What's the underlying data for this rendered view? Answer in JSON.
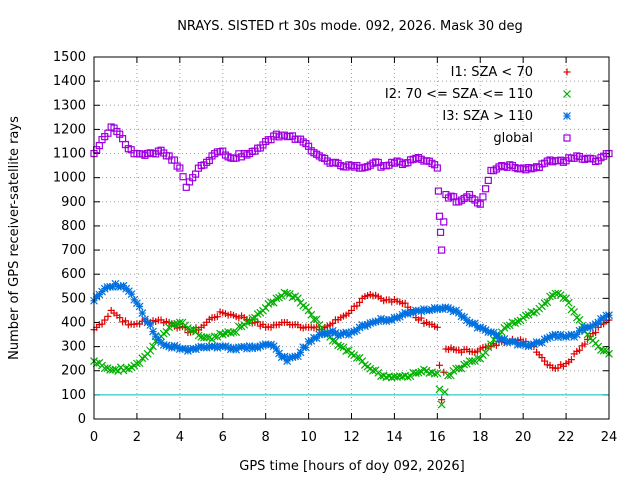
{
  "chart_data": {
    "type": "scatter",
    "title": "NRAYS. SISTED rt 30s mode. 092, 2026. Mask 30 deg",
    "xlabel": "GPS time [hours of doy 092, 2026]",
    "ylabel": "Number of GPS receiver-satellite rays",
    "xlim": [
      0,
      24
    ],
    "ylim": [
      0,
      1500
    ],
    "xticks": [
      "0",
      "2",
      "4",
      "6",
      "8",
      "10",
      "12",
      "14",
      "16",
      "18",
      "20",
      "22",
      "24"
    ],
    "yticks": [
      "0",
      "100",
      "200",
      "300",
      "400",
      "500",
      "600",
      "700",
      "800",
      "900",
      "1000",
      "1100",
      "1200",
      "1300",
      "1400",
      "1500"
    ],
    "grid": true,
    "legend_position": "top-right",
    "threshold_line": {
      "y": 100,
      "color": "#00c0c0"
    },
    "series": [
      {
        "name": "I1: SZA < 70",
        "symbol": "plus",
        "color": "#e00000",
        "points": [
          [
            0,
            370
          ],
          [
            0.5,
            410
          ],
          [
            0.8,
            450
          ],
          [
            1.2,
            420
          ],
          [
            1.6,
            390
          ],
          [
            2,
            395
          ],
          [
            2.5,
            405
          ],
          [
            3,
            410
          ],
          [
            3.5,
            400
          ],
          [
            4,
            380
          ],
          [
            4.5,
            360
          ],
          [
            5,
            380
          ],
          [
            5.5,
            420
          ],
          [
            6,
            440
          ],
          [
            6.5,
            430
          ],
          [
            7,
            420
          ],
          [
            7.5,
            400
          ],
          [
            8,
            380
          ],
          [
            8.5,
            390
          ],
          [
            9,
            400
          ],
          [
            9.5,
            390
          ],
          [
            10,
            380
          ],
          [
            10.5,
            370
          ],
          [
            11,
            390
          ],
          [
            11.5,
            420
          ],
          [
            12,
            450
          ],
          [
            12.5,
            500
          ],
          [
            13,
            510
          ],
          [
            13.5,
            490
          ],
          [
            14,
            495
          ],
          [
            14.5,
            480
          ],
          [
            15,
            420
          ],
          [
            15.5,
            400
          ],
          [
            16,
            380
          ],
          [
            16.2,
            80
          ],
          [
            16.4,
            290
          ],
          [
            17,
            285
          ],
          [
            17.5,
            280
          ],
          [
            18,
            290
          ],
          [
            18.5,
            300
          ],
          [
            19,
            320
          ],
          [
            19.5,
            330
          ],
          [
            20,
            320
          ],
          [
            20.5,
            300
          ],
          [
            21,
            240
          ],
          [
            21.5,
            210
          ],
          [
            22,
            230
          ],
          [
            22.5,
            280
          ],
          [
            23,
            330
          ],
          [
            23.5,
            380
          ],
          [
            24,
            410
          ]
        ]
      },
      {
        "name": "I2: 70 <= SZA <= 110",
        "symbol": "cross",
        "color": "#00b000",
        "points": [
          [
            0,
            240
          ],
          [
            0.5,
            210
          ],
          [
            1,
            205
          ],
          [
            1.5,
            210
          ],
          [
            2,
            230
          ],
          [
            2.5,
            270
          ],
          [
            3,
            330
          ],
          [
            3.5,
            380
          ],
          [
            4,
            400
          ],
          [
            4.5,
            370
          ],
          [
            5,
            340
          ],
          [
            5.5,
            330
          ],
          [
            6,
            350
          ],
          [
            6.5,
            360
          ],
          [
            7,
            390
          ],
          [
            7.5,
            420
          ],
          [
            8,
            460
          ],
          [
            8.5,
            500
          ],
          [
            9,
            520
          ],
          [
            9.5,
            500
          ],
          [
            10,
            450
          ],
          [
            10.5,
            390
          ],
          [
            11,
            340
          ],
          [
            11.5,
            300
          ],
          [
            12,
            270
          ],
          [
            12.5,
            240
          ],
          [
            13,
            200
          ],
          [
            13.5,
            180
          ],
          [
            14,
            175
          ],
          [
            14.5,
            180
          ],
          [
            15,
            190
          ],
          [
            15.5,
            200
          ],
          [
            16,
            190
          ],
          [
            16.2,
            60
          ],
          [
            16.5,
            180
          ],
          [
            17,
            210
          ],
          [
            17.5,
            240
          ],
          [
            18,
            250
          ],
          [
            18.5,
            310
          ],
          [
            19,
            360
          ],
          [
            19.5,
            400
          ],
          [
            20,
            420
          ],
          [
            20.5,
            440
          ],
          [
            21,
            480
          ],
          [
            21.5,
            520
          ],
          [
            22,
            500
          ],
          [
            22.5,
            420
          ],
          [
            23,
            350
          ],
          [
            23.5,
            300
          ],
          [
            24,
            270
          ]
        ]
      },
      {
        "name": "I3: SZA > 110",
        "symbol": "star",
        "color": "#0070e0",
        "points": [
          [
            0,
            490
          ],
          [
            0.5,
            540
          ],
          [
            1,
            560
          ],
          [
            1.5,
            540
          ],
          [
            2,
            480
          ],
          [
            2.5,
            400
          ],
          [
            3,
            330
          ],
          [
            3.5,
            300
          ],
          [
            4,
            290
          ],
          [
            4.5,
            290
          ],
          [
            5,
            300
          ],
          [
            5.5,
            300
          ],
          [
            6,
            300
          ],
          [
            6.5,
            295
          ],
          [
            7,
            300
          ],
          [
            7.5,
            300
          ],
          [
            8,
            310
          ],
          [
            8.5,
            290
          ],
          [
            9,
            240
          ],
          [
            9.5,
            260
          ],
          [
            10,
            320
          ],
          [
            10.5,
            350
          ],
          [
            11,
            360
          ],
          [
            11.5,
            350
          ],
          [
            12,
            360
          ],
          [
            12.5,
            390
          ],
          [
            13,
            400
          ],
          [
            13.5,
            410
          ],
          [
            14,
            420
          ],
          [
            14.5,
            440
          ],
          [
            15,
            450
          ],
          [
            15.5,
            450
          ],
          [
            16,
            455
          ],
          [
            16.5,
            460
          ],
          [
            17,
            440
          ],
          [
            17.5,
            400
          ],
          [
            18,
            380
          ],
          [
            18.5,
            360
          ],
          [
            19,
            330
          ],
          [
            19.5,
            320
          ],
          [
            20,
            310
          ],
          [
            20.5,
            310
          ],
          [
            21,
            330
          ],
          [
            21.5,
            350
          ],
          [
            22,
            340
          ],
          [
            22.5,
            350
          ],
          [
            23,
            380
          ],
          [
            23.5,
            400
          ],
          [
            24,
            430
          ]
        ]
      },
      {
        "name": "global",
        "symbol": "square",
        "color": "#a000e0",
        "points": [
          [
            0,
            1100
          ],
          [
            0.5,
            1170
          ],
          [
            0.8,
            1210
          ],
          [
            1.2,
            1180
          ],
          [
            1.6,
            1120
          ],
          [
            2,
            1100
          ],
          [
            2.5,
            1100
          ],
          [
            3,
            1110
          ],
          [
            3.5,
            1090
          ],
          [
            4,
            1040
          ],
          [
            4.3,
            960
          ],
          [
            4.6,
            1000
          ],
          [
            5,
            1050
          ],
          [
            5.5,
            1090
          ],
          [
            6,
            1110
          ],
          [
            6.5,
            1080
          ],
          [
            7,
            1100
          ],
          [
            7.5,
            1110
          ],
          [
            8,
            1150
          ],
          [
            8.5,
            1180
          ],
          [
            9,
            1170
          ],
          [
            9.5,
            1160
          ],
          [
            10,
            1130
          ],
          [
            10.5,
            1090
          ],
          [
            11,
            1060
          ],
          [
            11.5,
            1050
          ],
          [
            12,
            1050
          ],
          [
            12.5,
            1040
          ],
          [
            13,
            1060
          ],
          [
            13.5,
            1050
          ],
          [
            14,
            1060
          ],
          [
            14.5,
            1060
          ],
          [
            15,
            1080
          ],
          [
            15.5,
            1070
          ],
          [
            16,
            1040
          ],
          [
            16.1,
            840
          ],
          [
            16.2,
            700
          ],
          [
            16.4,
            930
          ],
          [
            17,
            900
          ],
          [
            17.5,
            930
          ],
          [
            18,
            890
          ],
          [
            18.5,
            1030
          ],
          [
            19,
            1050
          ],
          [
            19.5,
            1050
          ],
          [
            20,
            1040
          ],
          [
            20.5,
            1040
          ],
          [
            21,
            1060
          ],
          [
            21.5,
            1070
          ],
          [
            22,
            1070
          ],
          [
            22.5,
            1090
          ],
          [
            23,
            1080
          ],
          [
            23.5,
            1070
          ],
          [
            24,
            1100
          ]
        ]
      }
    ]
  }
}
